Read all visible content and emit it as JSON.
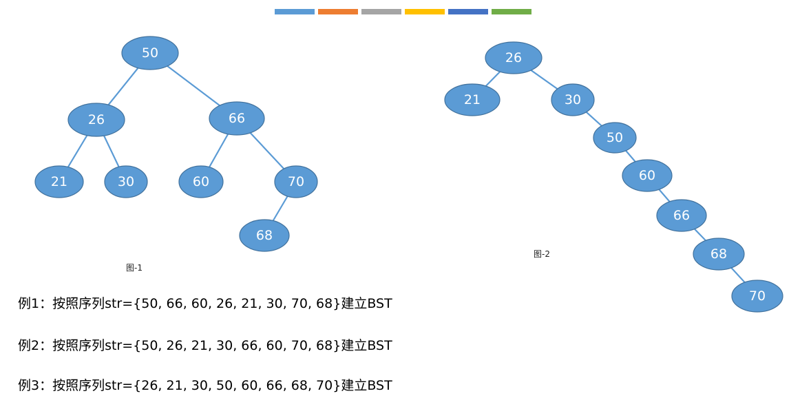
{
  "palette": [
    "#5b9bd5",
    "#ed7d31",
    "#a5a5a5",
    "#ffc000",
    "#4472c4",
    "#70ad47"
  ],
  "node_fill": "#5b9bd5",
  "edge_color": "#5b9bd5",
  "figure1": {
    "caption": "图-1",
    "nodes": [
      {
        "id": "n50",
        "label": "50"
      },
      {
        "id": "n26",
        "label": "26"
      },
      {
        "id": "n66",
        "label": "66"
      },
      {
        "id": "n21",
        "label": "21"
      },
      {
        "id": "n30",
        "label": "30"
      },
      {
        "id": "n60",
        "label": "60"
      },
      {
        "id": "n70",
        "label": "70"
      },
      {
        "id": "n68",
        "label": "68"
      }
    ],
    "edges": [
      [
        "n50",
        "n26"
      ],
      [
        "n50",
        "n66"
      ],
      [
        "n26",
        "n21"
      ],
      [
        "n26",
        "n30"
      ],
      [
        "n66",
        "n60"
      ],
      [
        "n66",
        "n70"
      ],
      [
        "n70",
        "n68"
      ]
    ]
  },
  "figure2": {
    "caption": "图-2",
    "nodes": [
      {
        "id": "m26",
        "label": "26"
      },
      {
        "id": "m21",
        "label": "21"
      },
      {
        "id": "m30",
        "label": "30"
      },
      {
        "id": "m50",
        "label": "50"
      },
      {
        "id": "m60",
        "label": "60"
      },
      {
        "id": "m66",
        "label": "66"
      },
      {
        "id": "m68",
        "label": "68"
      },
      {
        "id": "m70",
        "label": "70"
      }
    ],
    "edges": [
      [
        "m26",
        "m21"
      ],
      [
        "m26",
        "m30"
      ],
      [
        "m30",
        "m50"
      ],
      [
        "m50",
        "m60"
      ],
      [
        "m60",
        "m66"
      ],
      [
        "m66",
        "m68"
      ],
      [
        "m68",
        "m70"
      ]
    ]
  },
  "examples": [
    "例1：按照序列str={50, 66, 60, 26, 21, 30, 70, 68}建立BST",
    "例2：按照序列str={50, 26, 21, 30, 66, 60, 70, 68}建立BST",
    "例3：按照序列str={26, 21, 30, 50, 60, 66, 68, 70}建立BST"
  ]
}
